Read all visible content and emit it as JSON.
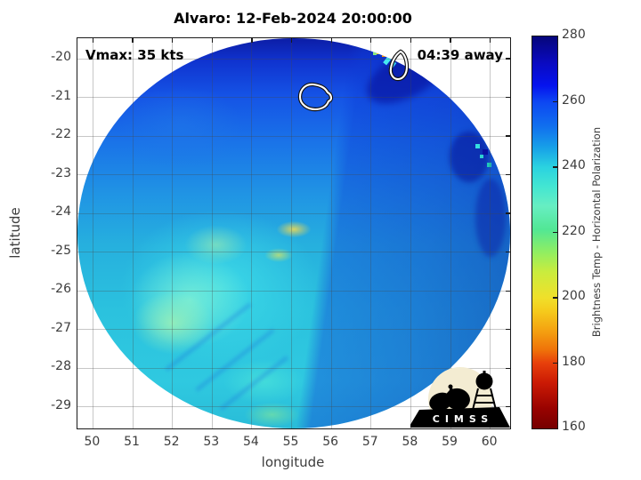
{
  "title": "Alvaro: 12-Feb-2024 20:00:00",
  "annotations": {
    "vmax": "Vmax: 35 kts",
    "eta": "04:39 away"
  },
  "axes": {
    "xlabel": "longitude",
    "ylabel": "latitude"
  },
  "logo": {
    "text": "CIMSS"
  },
  "chart_data": {
    "type": "heatmap",
    "title": "Alvaro: 12-Feb-2024 20:00:00",
    "xlabel": "longitude",
    "ylabel": "latitude",
    "xlim": [
      49.61,
      60.5
    ],
    "ylim": [
      -29.56,
      -19.47
    ],
    "xticks": [
      50,
      51,
      52,
      53,
      54,
      55,
      56,
      57,
      58,
      59,
      60
    ],
    "yticks": [
      -20,
      -21,
      -22,
      -23,
      -24,
      -25,
      -26,
      -27,
      -28,
      -29
    ],
    "grid": true,
    "annotations": [
      {
        "text": "Vmax: 35 kts",
        "pos": "top-left"
      },
      {
        "text": "04:39 away",
        "pos": "top-right"
      }
    ],
    "colorbar": {
      "label": "Brightness Temp - Horizontal Polarization",
      "lim": [
        160,
        280
      ],
      "ticks": [
        280,
        260,
        240,
        220,
        200,
        180,
        160
      ],
      "scale": [
        {
          "value": 280,
          "color": "#06067a"
        },
        {
          "value": 272,
          "color": "#0a0ac0"
        },
        {
          "value": 265,
          "color": "#0513ee"
        },
        {
          "value": 260,
          "color": "#0d47f2"
        },
        {
          "value": 252,
          "color": "#1172ee"
        },
        {
          "value": 246,
          "color": "#17a0e8"
        },
        {
          "value": 240,
          "color": "#2ad2e0"
        },
        {
          "value": 234,
          "color": "#43e6d2"
        },
        {
          "value": 228,
          "color": "#67eec2"
        },
        {
          "value": 221,
          "color": "#52e795"
        },
        {
          "value": 214,
          "color": "#90ee62"
        },
        {
          "value": 208,
          "color": "#c9ec3e"
        },
        {
          "value": 200,
          "color": "#f0e02a"
        },
        {
          "value": 196,
          "color": "#f5cb1c"
        },
        {
          "value": 190,
          "color": "#f4a211"
        },
        {
          "value": 184,
          "color": "#ef7209"
        },
        {
          "value": 180,
          "color": "#e7400b"
        },
        {
          "value": 174,
          "color": "#cb1a04"
        },
        {
          "value": 166,
          "color": "#980200"
        },
        {
          "value": 160,
          "color": "#760000"
        }
      ]
    },
    "swath": {
      "shape": "circular microwave sensor field of view filling the axes",
      "center": {
        "lon": 55.05,
        "lat": -24.5
      },
      "radius_deg": 5.45,
      "regions": [
        {
          "area": "northern rim band",
          "bt_K": 272
        },
        {
          "area": "north and northeast quadrant",
          "bt_K": 262
        },
        {
          "area": "east of diagonal swath seam",
          "bt_K": 258
        },
        {
          "area": "center and west (broad cyan shield)",
          "bt_K": 238
        },
        {
          "area": "west-southwest pale green patches",
          "bt_K": 226
        },
        {
          "area": "small warm yellow spot near 54.9E 24.3S",
          "bt_K": 212
        },
        {
          "area": "south-central teal",
          "bt_K": 240
        },
        {
          "area": "hot edge pixels near 57.3E 20.1S",
          "bt_K": 198
        }
      ]
    },
    "contours": [
      {
        "label": "white center-fix contour",
        "lon": 55.6,
        "lat": -21.0
      },
      {
        "label": "white center-fix contour",
        "lon": 57.7,
        "lat": -20.2
      }
    ]
  }
}
